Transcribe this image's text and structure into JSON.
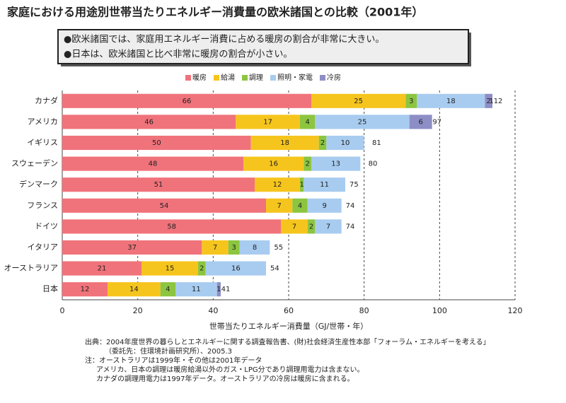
{
  "chart_data": {
    "type": "stacked-barh",
    "title": "家庭における用途別世帯当たりエネルギー消費量の欧米諸国との比較（2001年）",
    "bullets": [
      "●欧米諸国では、家庭用エネルギー消費に占める暖房の割合が非常に大きい。",
      "●日本は、欧米諸国と比べ非常に暖房の割合が小さい。"
    ],
    "x_label": "世帯当たりエネルギー消費量（GJ/世帯・年）",
    "categories": [
      "カナダ",
      "アメリカ",
      "イギリス",
      "スウェーデン",
      "デンマーク",
      "フランス",
      "ドイツ",
      "イタリア",
      "オーストラリア",
      "日本"
    ],
    "series": [
      {
        "name": "暖房",
        "color": "#f0737b",
        "values": [
          66,
          46,
          50,
          48,
          51,
          54,
          58,
          37,
          21,
          12
        ]
      },
      {
        "name": "給湯",
        "color": "#f6c51d",
        "values": [
          25,
          17,
          18,
          16,
          12,
          7,
          7,
          7,
          15,
          14
        ]
      },
      {
        "name": "調理",
        "color": "#8cc540",
        "values": [
          3,
          4,
          2,
          2,
          1,
          4,
          2,
          3,
          2,
          4
        ]
      },
      {
        "name": "照明・家電",
        "color": "#a8ccf0",
        "values": [
          18,
          25,
          10,
          13,
          11,
          9,
          7,
          8,
          16,
          11
        ]
      },
      {
        "name": "冷房",
        "color": "#8e8ec6",
        "values": [
          2,
          6,
          null,
          null,
          null,
          null,
          null,
          null,
          null,
          1
        ]
      }
    ],
    "totals": [
      112,
      97,
      81,
      80,
      75,
      74,
      74,
      55,
      54,
      41
    ],
    "xlim": [
      0,
      120
    ],
    "xticks": [
      0,
      20,
      40,
      60,
      80,
      100,
      120
    ],
    "grid": true,
    "notes": [
      "出典：2004年度世界の暮らしとエネルギーに関する調査報告書、(財)社会経済生産性本部「フォーラム・エネルギーを考える」",
      "（委託先：住環境計画研究所）、2005.3",
      "注：オーストラリアは1999年・その他は2001年データ",
      "アメリカ、日本の調理は暖房給湯以外のガス・LPG分であり調理用電力は含まない。",
      "カナダの調理用電力は1997年データ。オーストラリアの冷房は暖房に含まれる。"
    ]
  }
}
